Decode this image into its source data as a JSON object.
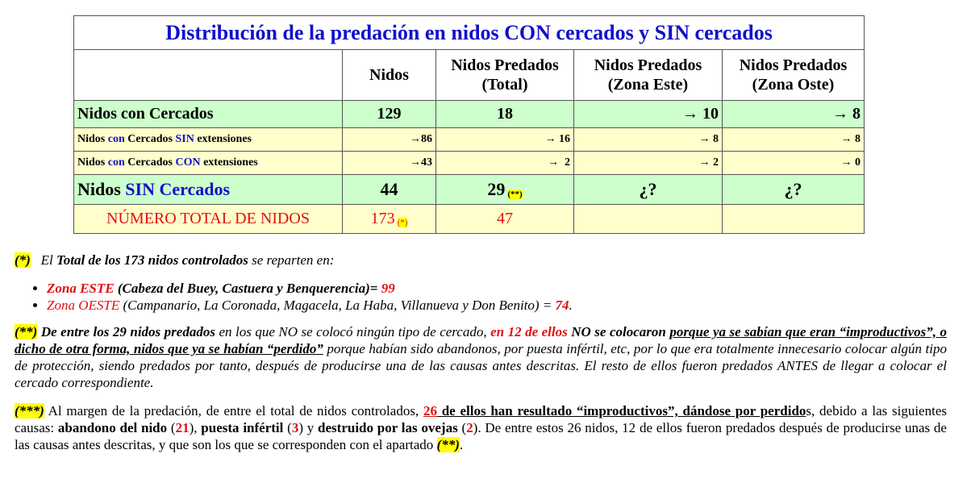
{
  "table": {
    "title": "Distribución de la predación en nidos CON cercados y SIN cercados",
    "header": [
      [
        "Nidos"
      ],
      [
        "Nidos Predados",
        "(Total)"
      ],
      [
        "Nidos Predados",
        "(Zona Este)"
      ],
      [
        "Nidos Predados",
        "(Zona Oste)"
      ]
    ],
    "rows": [
      {
        "label": [
          "Nidos con Cercados"
        ],
        "cells": [
          [
            "129"
          ],
          [
            "18"
          ],
          [
            "→ 10"
          ],
          [
            "→ 8"
          ]
        ]
      },
      {
        "label": [
          "Nidos ",
          "con",
          " Cercados ",
          "SIN",
          " extensiones"
        ],
        "cells": [
          [
            "→86"
          ],
          [
            "→ 16"
          ],
          [
            "→ 8"
          ],
          [
            "→ 8"
          ]
        ]
      },
      {
        "label": [
          "Nidos ",
          "con",
          " Cercados ",
          "CON",
          " extensiones"
        ],
        "cells": [
          [
            "→43"
          ],
          [
            "→  2"
          ],
          [
            "→ 2"
          ],
          [
            "→ 0"
          ]
        ]
      },
      {
        "label": [
          "Nidos ",
          "SIN Cercados"
        ],
        "cells": [
          [
            "44"
          ],
          [
            "29",
            "(**)"
          ],
          [
            "¿?"
          ],
          [
            "¿?"
          ]
        ]
      },
      {
        "label": [
          "NÚMERO TOTAL DE NIDOS"
        ],
        "cells": [
          [
            "173",
            "(*)"
          ],
          [
            "47"
          ],
          [],
          []
        ]
      }
    ]
  },
  "notes": {
    "note1": {
      "intro": [
        "(*)",
        "El ",
        "Total de los 173 nidos controlados",
        " se reparten en:"
      ],
      "bullets": [
        [
          "Zona ESTE",
          " (Cabeza del Buey, Castuera y Benquerencia)= ",
          "99"
        ],
        [
          "Zona OESTE",
          " (Campanario, La Coronada, Magacela, La Haba, Villanueva y Don Benito) = ",
          "74",
          "."
        ]
      ]
    },
    "note2": [
      "(**)",
      " De entre los 29 nidos predados",
      " en los que NO se colocó ningún tipo de cercado, ",
      "en 12 de ellos",
      " NO se colocaron ",
      "porque ya se sabían que eran “improductivos”, o dicho de otra forma, nidos que ya se habían “perdido”",
      " porque habían sido abandonos, por puesta infértil, etc, por lo que era totalmente innecesario colocar algún tipo de protección, siendo predados por tanto, después de producirse una de las causas antes descritas. El resto de ellos fueron predados ANTES de llegar a colocar el cercado correspondiente."
    ],
    "note3": [
      "(***)",
      " Al margen de la predación, de entre el total de nidos controlados, ",
      "26",
      " de ellos han resultado “improductivos”, dándose por perdido",
      "s, debido a las siguientes causas: ",
      "abandono del nido",
      " (",
      "21",
      "), ",
      "puesta infértil",
      " (",
      "3",
      ") y ",
      "destruido por las ovejas",
      " (",
      "2",
      "). De entre estos 26 nidos, 12 de ellos fueron predados después de producirse unas de las causas antes descritas, y que son los que se corresponden con el apartado ",
      "(**)",
      "."
    ]
  }
}
